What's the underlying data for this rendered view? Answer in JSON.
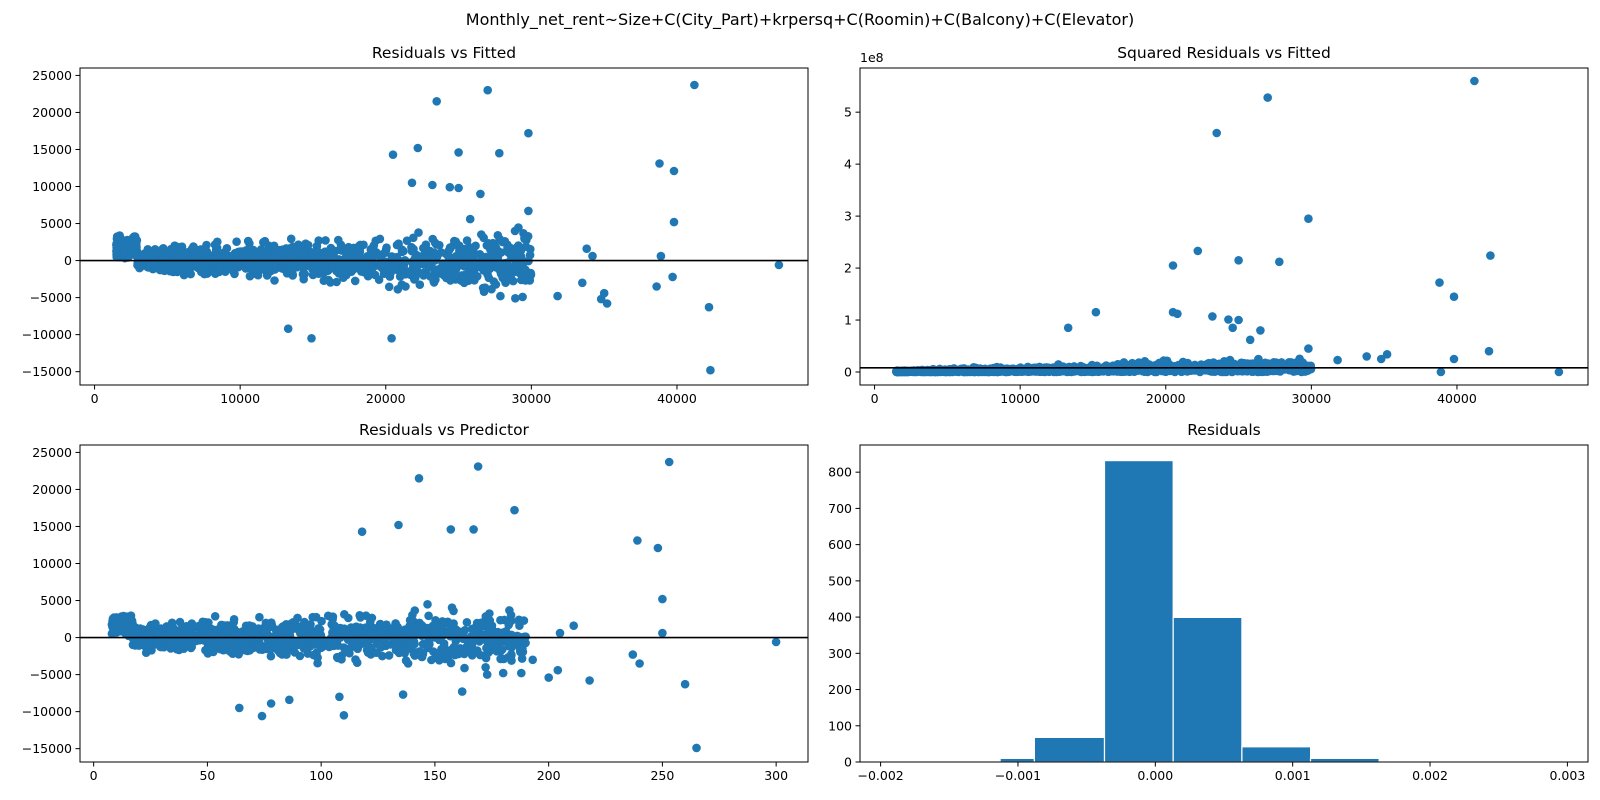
{
  "suptitle": "Monthly_net_rent~Size+C(City_Part)+krpersq+C(Roomin)+C(Balcony)+C(Elevator)",
  "colors": {
    "marker": "#1f77b4",
    "line": "#000000",
    "axis": "#000000",
    "bar_edge": "#ffffff"
  },
  "chart_data": [
    {
      "id": "resid_fitted",
      "type": "scatter",
      "title": "Residuals vs Fitted",
      "xlim": [
        -1000,
        49000
      ],
      "ylim": [
        -16800,
        26000
      ],
      "xticks": [
        0,
        10000,
        20000,
        30000,
        40000
      ],
      "yticks": [
        -15000,
        -10000,
        -5000,
        0,
        5000,
        10000,
        15000,
        20000,
        25000
      ],
      "hline": 0,
      "cluster": {
        "count": 1100,
        "x_range": [
          1500,
          30000
        ],
        "note": "dense cloud of points around zero residual"
      },
      "points": [
        [
          27000,
          23000
        ],
        [
          23500,
          21500
        ],
        [
          41200,
          23700
        ],
        [
          29800,
          17200
        ],
        [
          20500,
          14300
        ],
        [
          22200,
          15200
        ],
        [
          25000,
          14600
        ],
        [
          27800,
          14500
        ],
        [
          38800,
          13100
        ],
        [
          39800,
          12100
        ],
        [
          39800,
          5200
        ],
        [
          29800,
          6700
        ],
        [
          33800,
          1600
        ],
        [
          34200,
          600
        ],
        [
          38900,
          600
        ],
        [
          39700,
          -2200
        ],
        [
          42200,
          -6300
        ],
        [
          42300,
          -14800
        ],
        [
          47000,
          -600
        ],
        [
          33500,
          -3000
        ],
        [
          34800,
          -5200
        ],
        [
          35200,
          -5800
        ],
        [
          38600,
          -3500
        ],
        [
          35000,
          -4400
        ],
        [
          31800,
          -4800
        ],
        [
          29400,
          -4900
        ],
        [
          28900,
          -5100
        ],
        [
          20400,
          -10500
        ],
        [
          14900,
          -10500
        ],
        [
          13300,
          -9200
        ],
        [
          21800,
          10500
        ],
        [
          23200,
          10200
        ],
        [
          24400,
          9900
        ],
        [
          25000,
          9800
        ],
        [
          26500,
          9000
        ],
        [
          25800,
          5600
        ]
      ]
    },
    {
      "id": "sqresid_fitted",
      "type": "scatter",
      "title": "Squared Residuals vs Fitted",
      "offset_text": "1e8",
      "xlim": [
        -1000,
        49000
      ],
      "ylim": [
        -0.25,
        5.85
      ],
      "xticks": [
        0,
        10000,
        20000,
        30000,
        40000
      ],
      "yticks": [
        0,
        1,
        2,
        3,
        4,
        5
      ],
      "hline": 0.08,
      "cluster": {
        "count": 1100,
        "x_range": [
          1500,
          30000
        ],
        "note": "dense cloud of points near zero"
      },
      "points": [
        [
          41200,
          5.6
        ],
        [
          27000,
          5.28
        ],
        [
          23500,
          4.6
        ],
        [
          29800,
          2.95
        ],
        [
          22200,
          2.33
        ],
        [
          20500,
          2.05
        ],
        [
          25000,
          2.15
        ],
        [
          27800,
          2.12
        ],
        [
          38800,
          1.72
        ],
        [
          39800,
          1.45
        ],
        [
          42300,
          2.24
        ],
        [
          42200,
          0.4
        ],
        [
          15200,
          1.15
        ],
        [
          20500,
          1.15
        ],
        [
          20800,
          1.12
        ],
        [
          23200,
          1.07
        ],
        [
          24300,
          1.01
        ],
        [
          25000,
          1.0
        ],
        [
          25800,
          0.62
        ],
        [
          24600,
          0.85
        ],
        [
          26500,
          0.8
        ],
        [
          29800,
          0.45
        ],
        [
          33800,
          0.3
        ],
        [
          35200,
          0.34
        ],
        [
          34800,
          0.25
        ],
        [
          39800,
          0.25
        ],
        [
          47000,
          0.0
        ],
        [
          38900,
          0.0
        ],
        [
          31800,
          0.23
        ],
        [
          13300,
          0.85
        ]
      ]
    },
    {
      "id": "resid_predictor",
      "type": "scatter",
      "title": "Residuals vs Predictor",
      "xlim": [
        -6,
        314
      ],
      "ylim": [
        -16800,
        26000
      ],
      "xticks": [
        0,
        50,
        100,
        150,
        200,
        250,
        300
      ],
      "yticks": [
        -15000,
        -10000,
        -5000,
        0,
        5000,
        10000,
        15000,
        20000,
        25000
      ],
      "hline": 0,
      "cluster": {
        "count": 1100,
        "x_range": [
          8,
          190
        ],
        "note": "dense cloud of points around zero residual"
      },
      "points": [
        [
          253,
          23700
        ],
        [
          169,
          23100
        ],
        [
          143,
          21500
        ],
        [
          185,
          17200
        ],
        [
          118,
          14300
        ],
        [
          134,
          15200
        ],
        [
          157,
          14600
        ],
        [
          167,
          14600
        ],
        [
          239,
          13100
        ],
        [
          248,
          12100
        ],
        [
          250,
          5200
        ],
        [
          250,
          600
        ],
        [
          300,
          -600
        ],
        [
          260,
          -6300
        ],
        [
          265,
          -14900
        ],
        [
          237,
          -2300
        ],
        [
          240,
          -3500
        ],
        [
          218,
          -5800
        ],
        [
          200,
          -5400
        ],
        [
          204,
          -4400
        ],
        [
          193,
          -3000
        ],
        [
          188,
          -4800
        ],
        [
          211,
          1600
        ],
        [
          205,
          600
        ],
        [
          110,
          -10500
        ],
        [
          74,
          -10600
        ],
        [
          64,
          -9500
        ],
        [
          78,
          -8900
        ],
        [
          86,
          -8400
        ],
        [
          108,
          -8000
        ],
        [
          136,
          -7700
        ],
        [
          162,
          -7300
        ],
        [
          173,
          -5000
        ],
        [
          180,
          -4800
        ]
      ]
    },
    {
      "id": "resid_hist",
      "type": "bar",
      "title": "Residuals",
      "xlim": [
        -0.00215,
        0.00315
      ],
      "ylim": [
        0,
        875
      ],
      "xticks": [
        -0.002,
        -0.001,
        0.0,
        0.001,
        0.002,
        0.003
      ],
      "xtick_labels": [
        "−0.002",
        "−0.001",
        "0.000",
        "0.001",
        "0.002",
        "0.003"
      ],
      "yticks": [
        0,
        100,
        200,
        300,
        400,
        500,
        600,
        700,
        800
      ],
      "bin_edges": [
        -0.0021,
        -0.0016,
        -0.00113,
        -0.00088,
        -0.00037,
        0.00013,
        0.00063,
        0.00113,
        0.00163,
        0.00213,
        0.00263
      ],
      "values": [
        1,
        1,
        10,
        68,
        832,
        399,
        42,
        10,
        3,
        1
      ]
    }
  ]
}
